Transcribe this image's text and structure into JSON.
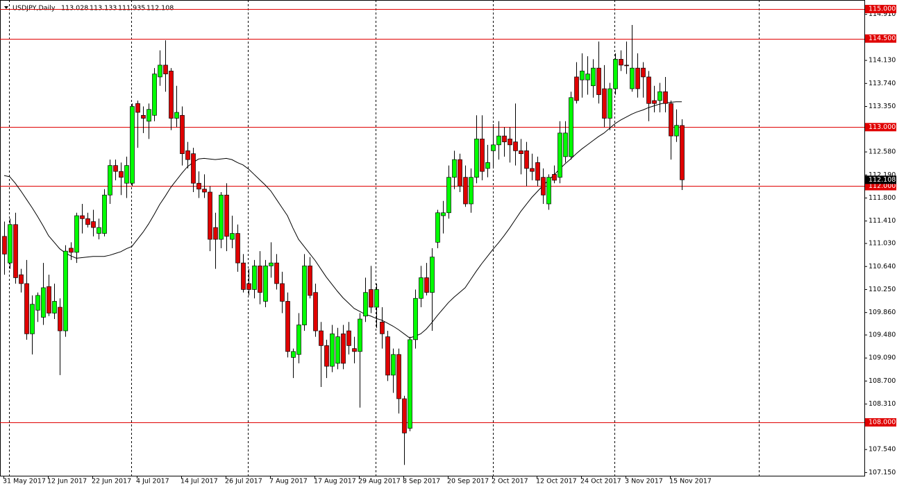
{
  "chart_data": {
    "type": "candlestick",
    "title": "USDJPY,Daily",
    "categories": [
      "31 May 2017",
      null,
      null,
      null,
      null,
      null,
      null,
      null,
      "12 Jun 2017",
      null,
      null,
      null,
      null,
      null,
      null,
      null,
      "22 Jun 2017",
      null,
      null,
      null,
      null,
      null,
      null,
      null,
      "4 Jul 2017",
      null,
      null,
      null,
      null,
      null,
      null,
      null,
      "14 Jul 2017",
      null,
      null,
      null,
      null,
      null,
      null,
      null,
      "26 Jul 2017",
      null,
      null,
      null,
      null,
      null,
      null,
      null,
      "7 Aug 2017",
      null,
      null,
      null,
      null,
      null,
      null,
      null,
      "17 Aug 2017",
      null,
      null,
      null,
      null,
      null,
      null,
      null,
      "29 Aug 2017",
      null,
      null,
      null,
      null,
      null,
      null,
      null,
      "8 Sep 2017",
      null,
      null,
      null,
      null,
      null,
      null,
      null,
      "20 Sep 2017",
      null,
      null,
      null,
      null,
      null,
      null,
      null,
      "2 Oct 2017",
      null,
      null,
      null,
      null,
      null,
      null,
      null,
      "12 Oct 2017",
      null,
      null,
      null,
      null,
      null,
      null,
      null,
      "24 Oct 2017",
      null,
      null,
      null,
      null,
      null,
      null,
      null,
      "3 Nov 2017",
      null,
      null,
      null,
      null,
      null,
      null,
      null,
      "15 Nov 2017",
      null,
      null
    ],
    "open": [
      111.15,
      110.7,
      111.35,
      110.5,
      110.35,
      109.5,
      109.9,
      109.78,
      110.3,
      109.85,
      109.95,
      109.55,
      110.95,
      110.88,
      111.5,
      111.45,
      111.4,
      111.2,
      111.2,
      111.85,
      112.35,
      112.25,
      112.05,
      112.05,
      113.4,
      113.2,
      113.1,
      113.2,
      113.85,
      114.05,
      113.95,
      113.15,
      113.2,
      112.6,
      112.55,
      112.05,
      111.95,
      111.9,
      111.3,
      111.1,
      111.85,
      111.1,
      111.2,
      110.7,
      110.35,
      110.25,
      110.65,
      110.05,
      110.65,
      110.7,
      110.35,
      110.05,
      109.1,
      109.15,
      109.65,
      110.65,
      110.2,
      109.55,
      109.3,
      108.95,
      109.0,
      109.5,
      109.55,
      109.25,
      109.2,
      109.8,
      110.25,
      109.95,
      109.7,
      109.45,
      108.8,
      109.15,
      108.4,
      107.9,
      109.4,
      110.1,
      110.45,
      110.2,
      111.05,
      111.5,
      111.55,
      112.15,
      112.45,
      112.15,
      111.7,
      112.15,
      112.8,
      112.3,
      112.6,
      112.7,
      112.85,
      112.8,
      112.75,
      112.6,
      112.6,
      112.3,
      112.4,
      112.15,
      111.7,
      112.2,
      112.15,
      112.5,
      112.5,
      113.85,
      113.8,
      113.8,
      113.7,
      114.0,
      113.65,
      113.15,
      113.65,
      114.15,
      114.05,
      113.65,
      114.0,
      114.0,
      113.85,
      113.45,
      113.45,
      113.6,
      113.4,
      112.85,
      113.028
    ],
    "high": [
      111.4,
      111.45,
      111.55,
      110.6,
      110.75,
      110.15,
      110.2,
      110.7,
      110.5,
      110.35,
      110.1,
      111.0,
      111.05,
      111.55,
      111.7,
      111.55,
      111.6,
      111.45,
      111.95,
      112.45,
      112.45,
      112.4,
      112.5,
      113.4,
      113.45,
      113.35,
      113.4,
      114.0,
      114.3,
      114.47,
      114.0,
      113.7,
      113.35,
      112.75,
      112.65,
      112.25,
      112.2,
      112.0,
      111.55,
      111.9,
      112.05,
      111.5,
      111.35,
      110.85,
      110.6,
      110.75,
      110.9,
      110.75,
      111.05,
      110.85,
      110.55,
      110.2,
      109.25,
      109.85,
      110.85,
      110.8,
      110.35,
      109.7,
      109.4,
      109.65,
      109.6,
      109.65,
      109.7,
      109.45,
      109.85,
      110.45,
      110.65,
      110.35,
      109.95,
      109.55,
      109.25,
      109.25,
      108.45,
      109.45,
      110.25,
      110.65,
      110.7,
      110.95,
      111.6,
      111.75,
      112.35,
      112.6,
      112.55,
      112.35,
      112.3,
      113.2,
      113.2,
      112.7,
      113.05,
      113.1,
      113.0,
      113.0,
      113.4,
      112.8,
      112.75,
      112.55,
      112.5,
      112.3,
      112.2,
      112.35,
      113.1,
      113.1,
      113.6,
      114.1,
      114.25,
      114.2,
      114.15,
      114.45,
      114.05,
      113.75,
      114.25,
      114.3,
      114.45,
      114.73,
      114.25,
      114.1,
      113.95,
      113.7,
      113.75,
      113.85,
      113.45,
      113.3,
      113.133
    ],
    "low": [
      110.5,
      110.6,
      110.35,
      110.2,
      109.4,
      109.15,
      109.7,
      109.65,
      109.8,
      109.75,
      108.8,
      109.45,
      110.75,
      110.7,
      111.2,
      111.3,
      111.15,
      111.1,
      111.15,
      111.7,
      112.1,
      111.85,
      111.8,
      112.0,
      112.65,
      112.9,
      112.8,
      113.1,
      113.7,
      113.6,
      112.95,
      113.0,
      112.35,
      112.3,
      111.9,
      111.8,
      111.8,
      110.9,
      110.6,
      110.95,
      110.9,
      110.95,
      110.55,
      110.2,
      110.15,
      110.1,
      110.0,
      109.95,
      110.45,
      110.25,
      109.85,
      109.1,
      108.75,
      109.0,
      109.55,
      110.1,
      109.45,
      108.6,
      108.75,
      108.85,
      108.9,
      108.9,
      109.15,
      109.0,
      108.25,
      109.7,
      109.85,
      109.6,
      109.25,
      108.7,
      108.5,
      108.15,
      107.28,
      107.85,
      109.25,
      109.95,
      110.15,
      109.55,
      110.95,
      111.2,
      111.45,
      111.95,
      111.9,
      111.65,
      111.55,
      112.05,
      112.1,
      112.15,
      112.3,
      112.45,
      112.5,
      112.4,
      112.35,
      112.2,
      112.0,
      112.1,
      112.0,
      111.7,
      111.6,
      112.05,
      112.05,
      112.4,
      112.45,
      113.4,
      113.5,
      113.55,
      113.5,
      113.4,
      113.0,
      112.95,
      113.55,
      113.95,
      113.9,
      113.6,
      113.5,
      113.5,
      113.1,
      113.25,
      113.25,
      113.25,
      112.45,
      112.75,
      111.935
    ],
    "close": [
      110.85,
      111.35,
      110.45,
      110.35,
      109.5,
      110.0,
      110.15,
      110.28,
      109.85,
      110.05,
      109.55,
      110.9,
      110.88,
      111.5,
      111.45,
      111.35,
      111.3,
      111.3,
      111.85,
      112.35,
      112.25,
      112.15,
      112.35,
      113.35,
      113.25,
      113.15,
      113.3,
      113.9,
      114.05,
      113.9,
      113.15,
      113.25,
      112.55,
      112.45,
      112.05,
      111.95,
      111.9,
      111.1,
      111.1,
      111.85,
      111.15,
      111.2,
      110.7,
      110.25,
      110.25,
      110.65,
      110.2,
      110.65,
      110.7,
      110.35,
      110.05,
      109.2,
      109.2,
      109.65,
      110.65,
      110.15,
      109.55,
      109.3,
      108.95,
      109.5,
      109.45,
      109.0,
      109.3,
      109.2,
      109.75,
      110.2,
      109.95,
      110.25,
      109.5,
      108.8,
      109.15,
      108.4,
      107.82,
      109.4,
      110.1,
      110.45,
      110.2,
      110.8,
      111.55,
      111.55,
      112.15,
      112.45,
      112.0,
      111.7,
      112.15,
      112.8,
      112.25,
      112.4,
      112.7,
      112.85,
      112.75,
      112.7,
      112.6,
      112.55,
      112.3,
      112.25,
      112.1,
      111.85,
      112.15,
      112.1,
      112.9,
      112.9,
      113.5,
      113.45,
      113.95,
      113.9,
      114.0,
      113.55,
      113.15,
      113.65,
      114.15,
      114.05,
      114.04,
      114.0,
      113.65,
      113.85,
      113.4,
      113.4,
      113.6,
      113.4,
      112.85,
      113.03,
      112.108
    ],
    "up_color": "#00ff00",
    "down_color": "#e00000",
    "moving_average": {
      "color": "#000000",
      "values": [
        112.18,
        112.16,
        112.05,
        111.92,
        111.78,
        111.64,
        111.49,
        111.33,
        111.16,
        111.05,
        110.94,
        110.87,
        110.82,
        110.78,
        110.79,
        110.8,
        110.81,
        110.81,
        110.81,
        110.83,
        110.86,
        110.89,
        110.94,
        110.98,
        111.1,
        111.22,
        111.36,
        111.52,
        111.69,
        111.83,
        111.98,
        112.1,
        112.22,
        112.33,
        112.4,
        112.46,
        112.47,
        112.46,
        112.45,
        112.46,
        112.47,
        112.45,
        112.4,
        112.36,
        112.29,
        112.2,
        112.11,
        112.02,
        111.92,
        111.78,
        111.64,
        111.5,
        111.29,
        111.1,
        110.98,
        110.86,
        110.74,
        110.6,
        110.46,
        110.34,
        110.22,
        110.11,
        110.02,
        109.93,
        109.88,
        109.83,
        109.8,
        109.76,
        109.73,
        109.68,
        109.63,
        109.57,
        109.5,
        109.43,
        109.46,
        109.5,
        109.58,
        109.69,
        109.81,
        109.92,
        110.03,
        110.12,
        110.2,
        110.28,
        110.42,
        110.56,
        110.69,
        110.81,
        110.93,
        111.04,
        111.16,
        111.29,
        111.43,
        111.57,
        111.69,
        111.81,
        111.91,
        112.01,
        112.1,
        112.19,
        112.29,
        112.38,
        112.46,
        112.55,
        112.63,
        112.7,
        112.77,
        112.84,
        112.9,
        112.98,
        113.06,
        113.12,
        113.17,
        113.22,
        113.26,
        113.29,
        113.33,
        113.36,
        113.39,
        113.41,
        113.42,
        113.43,
        113.43
      ]
    },
    "ylim": [
      107.096,
      115.153
    ],
    "yticks": [
      {
        "value": 114.91,
        "label": "114.910"
      },
      {
        "value": 114.13,
        "label": "114.130"
      },
      {
        "value": 113.74,
        "label": "113.740"
      },
      {
        "value": 113.35,
        "label": "113.350"
      },
      {
        "value": 112.58,
        "label": "112.580"
      },
      {
        "value": 112.19,
        "label": "112.190"
      },
      {
        "value": 111.8,
        "label": "111.800"
      },
      {
        "value": 111.41,
        "label": "111.410"
      },
      {
        "value": 111.03,
        "label": "111.030"
      },
      {
        "value": 110.64,
        "label": "110.640"
      },
      {
        "value": 110.25,
        "label": "110.250"
      },
      {
        "value": 109.86,
        "label": "109.860"
      },
      {
        "value": 109.48,
        "label": "109.480"
      },
      {
        "value": 109.09,
        "label": "109.090"
      },
      {
        "value": 108.7,
        "label": "108.700"
      },
      {
        "value": 108.31,
        "label": "108.310"
      },
      {
        "value": 107.54,
        "label": "107.540"
      },
      {
        "value": 107.15,
        "label": "107.150"
      }
    ],
    "levels": [
      {
        "value": 115,
        "label": "115.000"
      },
      {
        "value": 114.5,
        "label": "114.500"
      },
      {
        "value": 113,
        "label": "113.000"
      },
      {
        "value": 112,
        "label": "112.000"
      },
      {
        "value": 108,
        "label": "108.000"
      }
    ],
    "level_color": "#e00000"
  }
}
